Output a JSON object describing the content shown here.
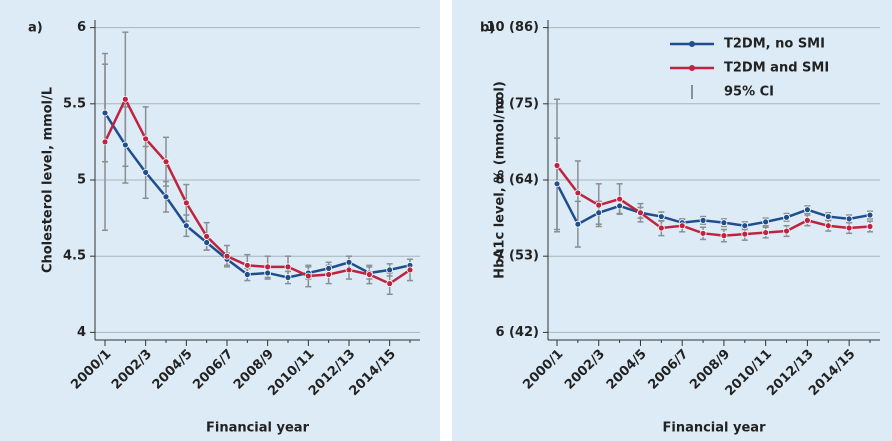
{
  "chart_data": [
    {
      "type": "line",
      "label": "a)",
      "ylabel": "Cholesterol level, mmol/L",
      "xlabel": "Financial year",
      "categories": [
        "2000/1",
        null,
        "2002/3",
        null,
        "2004/5",
        null,
        "2006/7",
        null,
        "2008/9",
        null,
        "2010/11",
        null,
        "2012/13",
        null,
        "2014/15",
        null
      ],
      "ylim": [
        3.95,
        6.05
      ],
      "yticks": [
        4,
        4.5,
        5,
        5.5,
        6
      ],
      "grid": true,
      "series": [
        {
          "color": "#1f4e8c",
          "values": [
            5.44,
            5.23,
            5.05,
            4.89,
            4.7,
            4.59,
            4.48,
            4.38,
            4.39,
            4.36,
            4.39,
            4.42,
            4.46,
            4.39,
            4.41,
            4.44
          ],
          "errors": [
            0.32,
            0.25,
            0.17,
            0.1,
            0.07,
            0.05,
            0.04,
            0.04,
            0.04,
            0.04,
            0.04,
            0.04,
            0.04,
            0.04,
            0.04,
            0.04
          ]
        },
        {
          "color": "#c0233f",
          "values": [
            5.25,
            5.53,
            5.27,
            5.12,
            4.85,
            4.63,
            4.5,
            4.44,
            4.43,
            4.43,
            4.37,
            4.38,
            4.41,
            4.38,
            4.32,
            4.41
          ],
          "errors": [
            0.58,
            0.44,
            0.21,
            0.16,
            0.12,
            0.09,
            0.07,
            0.07,
            0.07,
            0.07,
            0.07,
            0.06,
            0.06,
            0.06,
            0.07,
            0.07
          ]
        }
      ]
    },
    {
      "type": "line",
      "label": "b)",
      "ylabel": "HbA1c level, % (mmol/mol)",
      "xlabel": "Financial year",
      "categories": [
        "2000/1",
        null,
        "2002/3",
        null,
        "2004/5",
        null,
        "2006/7",
        null,
        "2008/9",
        null,
        "2010/11",
        null,
        "2012/13",
        null,
        "2014/15",
        null
      ],
      "ylim": [
        5.9,
        10.1
      ],
      "yticks": [
        {
          "value": 6,
          "label": "6 (42)"
        },
        {
          "value": 7,
          "label": "7 (53)"
        },
        {
          "value": 8,
          "label": "8 (64)"
        },
        {
          "value": 9,
          "label": "9 (75)"
        },
        {
          "value": 10,
          "label": "10 (86)"
        }
      ],
      "grid": true,
      "legend": "upper right",
      "ci_label": "95% CI",
      "series": [
        {
          "name": "T2DM, no SMI",
          "color": "#1f4e8c",
          "values": [
            7.95,
            7.42,
            7.57,
            7.66,
            7.57,
            7.52,
            7.44,
            7.47,
            7.44,
            7.4,
            7.45,
            7.51,
            7.61,
            7.52,
            7.49,
            7.54
          ],
          "errors": [
            0.6,
            0.3,
            0.15,
            0.1,
            0.07,
            0.06,
            0.05,
            0.05,
            0.05,
            0.05,
            0.05,
            0.05,
            0.05,
            0.05,
            0.05,
            0.05
          ]
        },
        {
          "name": "T2DM and SMI",
          "color": "#c0233f",
          "values": [
            8.19,
            7.83,
            7.67,
            7.75,
            7.57,
            7.37,
            7.4,
            7.3,
            7.27,
            7.29,
            7.31,
            7.33,
            7.47,
            7.4,
            7.37,
            7.39
          ],
          "errors": [
            0.87,
            0.42,
            0.28,
            0.2,
            0.12,
            0.1,
            0.08,
            0.08,
            0.08,
            0.08,
            0.07,
            0.07,
            0.07,
            0.07,
            0.07,
            0.07
          ]
        }
      ]
    }
  ]
}
